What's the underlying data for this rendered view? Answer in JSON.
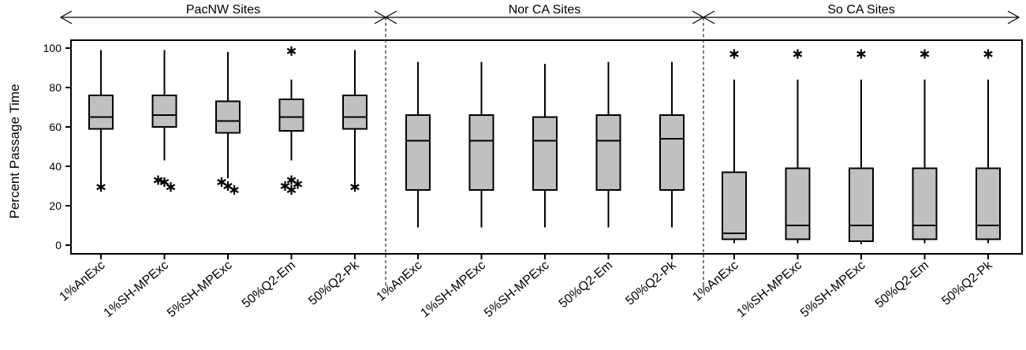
{
  "colors": {
    "box_fill": "#c0c0c0",
    "stroke": "#000000",
    "background": "#ffffff"
  },
  "chart_data": {
    "type": "box",
    "ylabel": "Percent Passage Time",
    "ylim": [
      -5,
      104
    ],
    "yticks": [
      0,
      20,
      40,
      60,
      80,
      100
    ],
    "groups": [
      {
        "label": "PacNW Sites",
        "categories": [
          "1%AnExc",
          "1%SH-MPExc",
          "5%SH-MPExc",
          "50%Q2-Em",
          "50%Q2-Pk"
        ],
        "boxes": [
          {
            "whisker_low": 31,
            "q1": 59,
            "median": 65,
            "q3": 76,
            "whisker_high": 99,
            "outliers": [
              29.5
            ]
          },
          {
            "whisker_low": 43,
            "q1": 60,
            "median": 66,
            "q3": 76,
            "whisker_high": 99,
            "outliers": [
              33,
              32,
              29.5
            ]
          },
          {
            "whisker_low": 34,
            "q1": 57,
            "median": 63,
            "q3": 73,
            "whisker_high": 98,
            "outliers": [
              32,
              30,
              28
            ]
          },
          {
            "whisker_low": 43,
            "q1": 58,
            "median": 65,
            "q3": 74,
            "whisker_high": 84,
            "outliers": [
              98.5,
              33,
              31,
              30,
              28
            ]
          },
          {
            "whisker_low": 31,
            "q1": 59,
            "median": 65,
            "q3": 76,
            "whisker_high": 99,
            "outliers": [
              29.5
            ]
          }
        ]
      },
      {
        "label": "Nor CA Sites",
        "categories": [
          "1%AnExc",
          "1%SH-MPExc",
          "5%SH-MPExc",
          "50%Q2-Em",
          "50%Q2-Pk"
        ],
        "boxes": [
          {
            "whisker_low": 9,
            "q1": 28,
            "median": 53,
            "q3": 66,
            "whisker_high": 93,
            "outliers": []
          },
          {
            "whisker_low": 9,
            "q1": 28,
            "median": 53,
            "q3": 66,
            "whisker_high": 93,
            "outliers": []
          },
          {
            "whisker_low": 9,
            "q1": 28,
            "median": 53,
            "q3": 65,
            "whisker_high": 92,
            "outliers": []
          },
          {
            "whisker_low": 9,
            "q1": 28,
            "median": 53,
            "q3": 66,
            "whisker_high": 93,
            "outliers": []
          },
          {
            "whisker_low": 9,
            "q1": 28,
            "median": 54,
            "q3": 66,
            "whisker_high": 93,
            "outliers": []
          }
        ]
      },
      {
        "label": "So CA Sites",
        "categories": [
          "1%AnExc",
          "1%SH-MPExc",
          "5%SH-MPExc",
          "50%Q2-Em",
          "50%Q2-Pk"
        ],
        "boxes": [
          {
            "whisker_low": 1,
            "q1": 3,
            "median": 6,
            "q3": 37,
            "whisker_high": 84,
            "outliers": [
              97
            ]
          },
          {
            "whisker_low": 1,
            "q1": 3,
            "median": 10,
            "q3": 39,
            "whisker_high": 84,
            "outliers": [
              97
            ]
          },
          {
            "whisker_low": 0.5,
            "q1": 2,
            "median": 10,
            "q3": 39,
            "whisker_high": 84,
            "outliers": [
              97
            ]
          },
          {
            "whisker_low": 1,
            "q1": 3,
            "median": 10,
            "q3": 39,
            "whisker_high": 84,
            "outliers": [
              97
            ]
          },
          {
            "whisker_low": 1,
            "q1": 3,
            "median": 10,
            "q3": 39,
            "whisker_high": 84,
            "outliers": [
              97
            ]
          }
        ]
      }
    ]
  }
}
